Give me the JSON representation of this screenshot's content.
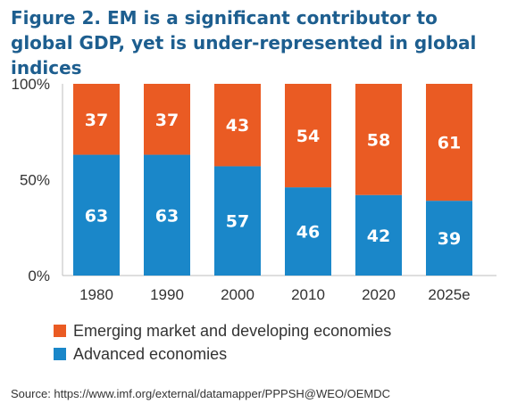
{
  "title": "Figure 2. EM is a significant contributor to global GDP, yet is under-represented in global indices",
  "source": "Source: https://www.imf.org/external/datamapper/PPPSH@WEO/OEMDC",
  "colors": {
    "emerging": "#ea5b23",
    "advanced": "#1a87c9",
    "axis_text": "#333333",
    "grid": "#bdbdbd"
  },
  "chart_data": {
    "type": "bar",
    "stacked": true,
    "categories": [
      "1980",
      "1990",
      "2000",
      "2010",
      "2020",
      "2025e"
    ],
    "series": [
      {
        "name": "Advanced economies",
        "values": [
          63,
          63,
          57,
          46,
          42,
          39
        ]
      },
      {
        "name": "Emerging market and developing economies",
        "values": [
          37,
          37,
          43,
          54,
          58,
          61
        ]
      }
    ],
    "ylim": [
      0,
      100
    ],
    "yticks": [
      "0%",
      "50%",
      "100%"
    ],
    "legend_position": "bottom",
    "grid": false
  }
}
